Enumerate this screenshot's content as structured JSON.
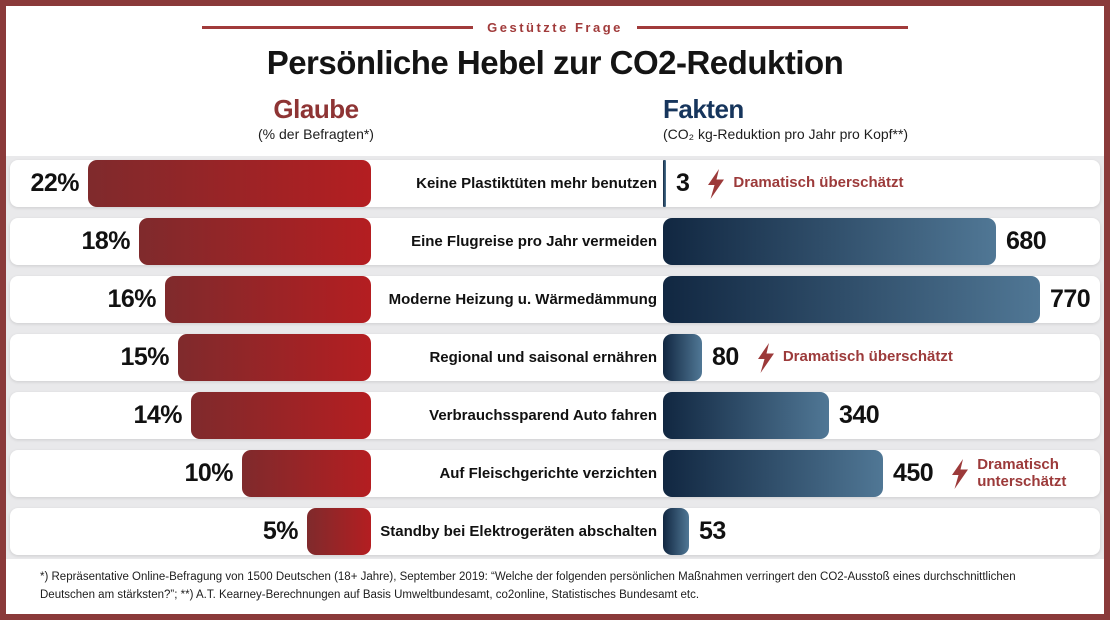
{
  "header": {
    "kicker": "Gestützte Frage",
    "title": "Persönliche Hebel zur CO2-Reduktion"
  },
  "columns": {
    "belief": {
      "label": "Glaube",
      "sublabel": "(% der Befragten*)"
    },
    "facts": {
      "label": "Fakten",
      "sublabel": "(CO₂ kg-Reduktion pro Jahr pro Kopf**)"
    }
  },
  "chart_data": {
    "type": "bar",
    "title": "Persönliche Hebel zur CO2-Reduktion",
    "subtitle": "Gestützte Frage",
    "orientation": "horizontal-diverging",
    "categories": [
      "Keine Plastiktüten mehr benutzen",
      "Eine Flugreise pro Jahr vermeiden",
      "Moderne Heizung u. Wärmedämmung",
      "Regional und saisonal ernähren",
      "Verbrauchssparend Auto fahren",
      "Auf Fleischgerichte verzichten",
      "Standby bei Elektrogeräten abschalten"
    ],
    "series": [
      {
        "name": "Glaube (% der Befragten)",
        "unit": "%",
        "values": [
          22,
          18,
          16,
          15,
          14,
          10,
          5
        ]
      },
      {
        "name": "Fakten (CO₂ kg-Reduktion pro Jahr pro Kopf)",
        "unit": "kg",
        "values": [
          3,
          680,
          770,
          80,
          340,
          450,
          53
        ]
      }
    ],
    "rows": [
      {
        "measure": "Keine Plastiktüten mehr benutzen",
        "belief_pct": 22,
        "belief_label": "22%",
        "fact_kg": 3,
        "fact_label": "3",
        "annotation": "Dramatisch überschätzt",
        "annotation_two_lines": false
      },
      {
        "measure": "Eine Flugreise pro Jahr vermeiden",
        "belief_pct": 18,
        "belief_label": "18%",
        "fact_kg": 680,
        "fact_label": "680",
        "annotation": null,
        "annotation_two_lines": false
      },
      {
        "measure": "Moderne Heizung u. Wärmedämmung",
        "belief_pct": 16,
        "belief_label": "16%",
        "fact_kg": 770,
        "fact_label": "770",
        "annotation": null,
        "annotation_two_lines": false
      },
      {
        "measure": "Regional und saisonal ernähren",
        "belief_pct": 15,
        "belief_label": "15%",
        "fact_kg": 80,
        "fact_label": "80",
        "annotation": "Dramatisch überschätzt",
        "annotation_two_lines": false
      },
      {
        "measure": "Verbrauchssparend Auto fahren",
        "belief_pct": 14,
        "belief_label": "14%",
        "fact_kg": 340,
        "fact_label": "340",
        "annotation": null,
        "annotation_two_lines": false
      },
      {
        "measure": "Auf Fleischgerichte verzichten",
        "belief_pct": 10,
        "belief_label": "10%",
        "fact_kg": 450,
        "fact_label": "450",
        "annotation": "Dramatisch unterschätzt",
        "annotation_two_lines": true
      },
      {
        "measure": "Standby bei Elektrogeräten abschalten",
        "belief_pct": 5,
        "belief_label": "5%",
        "fact_kg": 53,
        "fact_label": "53",
        "annotation": null,
        "annotation_two_lines": false
      }
    ],
    "axis": {
      "belief_max_pct": 22,
      "fact_max_kg": 770
    },
    "legend_position": "column-headers",
    "grid": false
  },
  "icons": {
    "lightning": "lightning-bolt-icon"
  },
  "colors": {
    "frame_maroon": "#8a3a3a",
    "kicker_red": "#a13b3b",
    "glaube_red": "#8e3434",
    "fakten_navy": "#16355c",
    "belief_bar_gradient": [
      "#7f2a2c",
      "#b41e21"
    ],
    "fact_bar_gradient": [
      "#112741",
      "#507795"
    ],
    "annotation_red": "#9c3a3a",
    "rows_background": "#e9e9eb",
    "card_background": "#ffffff",
    "text_dark": "#111111"
  },
  "footnote": "*) Repräsentative Online-Befragung von 1500 Deutschen (18+ Jahre), September 2019: “Welche der folgenden persönlichen Maßnahmen verringert den CO2-Ausstoß eines durchschnittlichen Deutschen am stärksten?”; **) A.T. Kearney-Berechnungen auf Basis Umweltbundesamt, co2online, Statistisches Bundesamt etc."
}
